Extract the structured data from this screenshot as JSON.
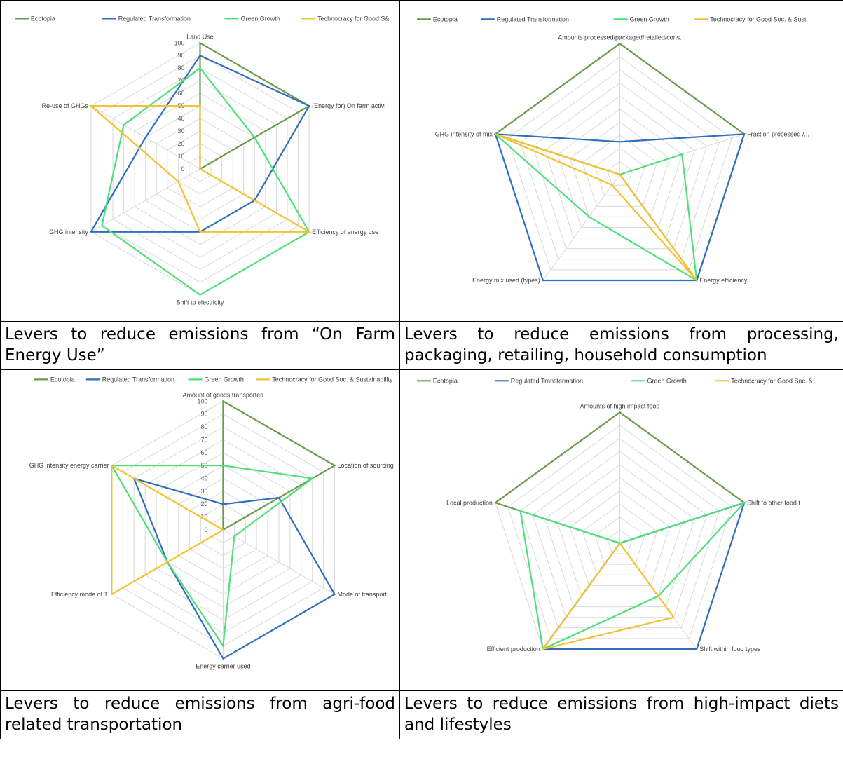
{
  "colors": {
    "Ecotopia": "#6a9a4c",
    "Regulated Transformation": "#2f6fbd",
    "Green Growth": "#4fe07a",
    "Technocracy for Good Soc. & Sust.": "#f2c230"
  },
  "captions": {
    "tl": "Levers to reduce emissions from “On Farm Energy Use”",
    "tr": "Levers to reduce emissions from processing, packaging, retailing, household consumption",
    "bl": "Levers to reduce emissions from agri-food related transportation",
    "br": "Levers to reduce emissions from high-impact diets and lifestyles"
  },
  "chart_data": [
    {
      "id": "tl",
      "type": "radar",
      "legend": [
        "Ecotopia",
        "Regulated Transformation",
        "Green Growth",
        "Technocracy for Good S&"
      ],
      "legend_placement": "top",
      "axes": [
        "Land Use",
        "(Energy for) On farm activi",
        "Efficiency of energy use",
        "Shift to electricity",
        "GHG intensity",
        "Re-use of GHGs"
      ],
      "rmax": 100,
      "ticks": [
        "0",
        "10",
        "20",
        "30",
        "40",
        "50",
        "60",
        "70",
        "80",
        "90",
        "100"
      ],
      "series": [
        {
          "name": "Ecotopia",
          "values": [
            100,
            100,
            0,
            0,
            0,
            0
          ]
        },
        {
          "name": "Regulated Transformation",
          "values": [
            90,
            100,
            50,
            50,
            100,
            50
          ]
        },
        {
          "name": "Green Growth",
          "values": [
            80,
            50,
            100,
            100,
            90,
            70
          ]
        },
        {
          "name": "Technocracy for Good S&",
          "values": [
            50,
            0,
            100,
            50,
            20,
            100
          ]
        }
      ]
    },
    {
      "id": "tr",
      "type": "radar",
      "legend": [
        "Ecotopia",
        "Regulated Transformation",
        "Green Growth",
        "Technocracy for Good Soc. & Sust."
      ],
      "legend_placement": "top",
      "axes": [
        "Amounts processed/packaged/retailed/cons.",
        "Fraction processed /...",
        "Energy efficiency",
        "Energy mix used (types)",
        "GHG intensity of mix"
      ],
      "rmax": 100,
      "ticks": [],
      "series": [
        {
          "name": "Ecotopia",
          "values": [
            100,
            100,
            100,
            0,
            100
          ]
        },
        {
          "name": "Regulated Transformation",
          "values": [
            25,
            100,
            100,
            100,
            100
          ]
        },
        {
          "name": "Green Growth",
          "values": [
            0,
            50,
            100,
            40,
            100
          ]
        },
        {
          "name": "Technocracy for Good Soc. & Sust.",
          "values": [
            0,
            0,
            100,
            10,
            100
          ]
        }
      ]
    },
    {
      "id": "bl",
      "type": "radar",
      "legend": [
        "Ecotopia",
        "Regulated Transformation",
        "Green Growth",
        "Technocracy for Good Soc. & Sustainability"
      ],
      "legend_placement": "top",
      "axes": [
        "Amount of goods transported",
        "Location of sourcing",
        "Mode of transport",
        "Energy carrier used",
        "Efficiency mode of T.",
        "GHG intensity energy carrier"
      ],
      "rmax": 100,
      "ticks": [
        "0",
        "10",
        "20",
        "30",
        "40",
        "50",
        "60",
        "70",
        "80",
        "90",
        "100"
      ],
      "series": [
        {
          "name": "Ecotopia",
          "values": [
            100,
            100,
            0,
            0,
            0,
            0
          ]
        },
        {
          "name": "Regulated Transformation",
          "values": [
            20,
            50,
            100,
            100,
            50,
            80
          ]
        },
        {
          "name": "Green Growth",
          "values": [
            50,
            80,
            10,
            90,
            50,
            100
          ]
        },
        {
          "name": "Technocracy for Good Soc. & Sustainability",
          "values": [
            0,
            0,
            0,
            0,
            100,
            100
          ]
        }
      ]
    },
    {
      "id": "br",
      "type": "radar",
      "legend": [
        "Ecotopia",
        "Regulated Transformation",
        "Green Growth",
        "Technocracy for Good Soc. &"
      ],
      "legend_placement": "top",
      "axes": [
        "Amounts of high impact food",
        "Shift to other food t",
        "Shift within food types",
        "Efficient production",
        "Local production"
      ],
      "rmax": 100,
      "ticks": [],
      "series": [
        {
          "name": "Ecotopia",
          "values": [
            100,
            100,
            0,
            0,
            100
          ]
        },
        {
          "name": "Regulated Transformation",
          "values": [
            0,
            100,
            100,
            100,
            0
          ]
        },
        {
          "name": "Green Growth",
          "values": [
            0,
            100,
            50,
            100,
            80
          ]
        },
        {
          "name": "Technocracy for Good Soc. &",
          "values": [
            0,
            0,
            70,
            100,
            0
          ]
        }
      ]
    }
  ]
}
